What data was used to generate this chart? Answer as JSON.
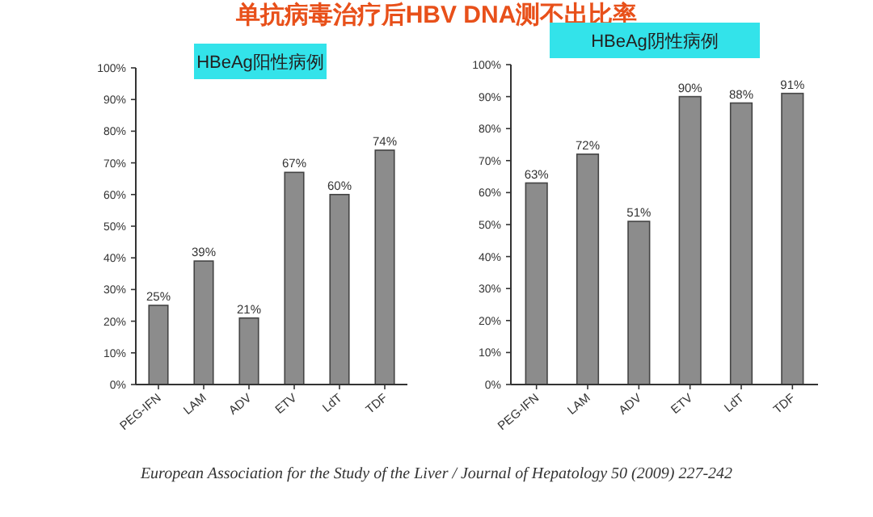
{
  "chart_data": [
    {
      "type": "bar",
      "title": "HBeAg阳性病例",
      "categories": [
        "PEG-IFN",
        "LAM",
        "ADV",
        "ETV",
        "LdT",
        "TDF"
      ],
      "values": [
        25,
        39,
        21,
        67,
        60,
        74
      ],
      "value_labels": [
        "25%",
        "39%",
        "21%",
        "67%",
        "60%",
        "74%"
      ],
      "color": "#8c8c8c",
      "ylim": [
        0,
        100
      ],
      "yticks": [
        {
          "value": 0,
          "label": "0%"
        },
        {
          "value": 10,
          "label": "10%"
        },
        {
          "value": 20,
          "label": "20%"
        },
        {
          "value": 30,
          "label": "30%"
        },
        {
          "value": 40,
          "label": "40%"
        },
        {
          "value": 50,
          "label": "50%"
        },
        {
          "value": 60,
          "label": "60%"
        },
        {
          "value": 70,
          "label": "70%"
        },
        {
          "value": 80,
          "label": "80%"
        },
        {
          "value": 90,
          "label": "90%"
        },
        {
          "value": 100,
          "label": "100%"
        }
      ],
      "grid": false,
      "annotations": [
        "单抗病毒治疗后HBV DNA测不出比率"
      ]
    },
    {
      "type": "bar",
      "title": "HBeAg阴性病例",
      "categories": [
        "PEG-IFN",
        "LAM",
        "ADV",
        "ETV",
        "LdT",
        "TDF"
      ],
      "values": [
        63,
        72,
        51,
        90,
        88,
        91
      ],
      "value_labels": [
        "63%",
        "72%",
        "51%",
        "90%",
        "88%",
        "91%"
      ],
      "color": "#8c8c8c",
      "ylim": [
        0,
        100
      ],
      "yticks": [
        {
          "value": 0,
          "label": "0%"
        },
        {
          "value": 10,
          "label": "10%"
        },
        {
          "value": 20,
          "label": "20%"
        },
        {
          "value": 30,
          "label": "30%"
        },
        {
          "value": 40,
          "label": "40%"
        },
        {
          "value": 50,
          "label": "50%"
        },
        {
          "value": 60,
          "label": "60%"
        },
        {
          "value": 70,
          "label": "70%"
        },
        {
          "value": 80,
          "label": "80%"
        },
        {
          "value": 90,
          "label": "90%"
        },
        {
          "value": 100,
          "label": "100%"
        }
      ],
      "grid": false,
      "annotations": [
        "European Association for the Study of the Liver / Journal of Hepatology 50 (2009) 227-242"
      ]
    }
  ]
}
